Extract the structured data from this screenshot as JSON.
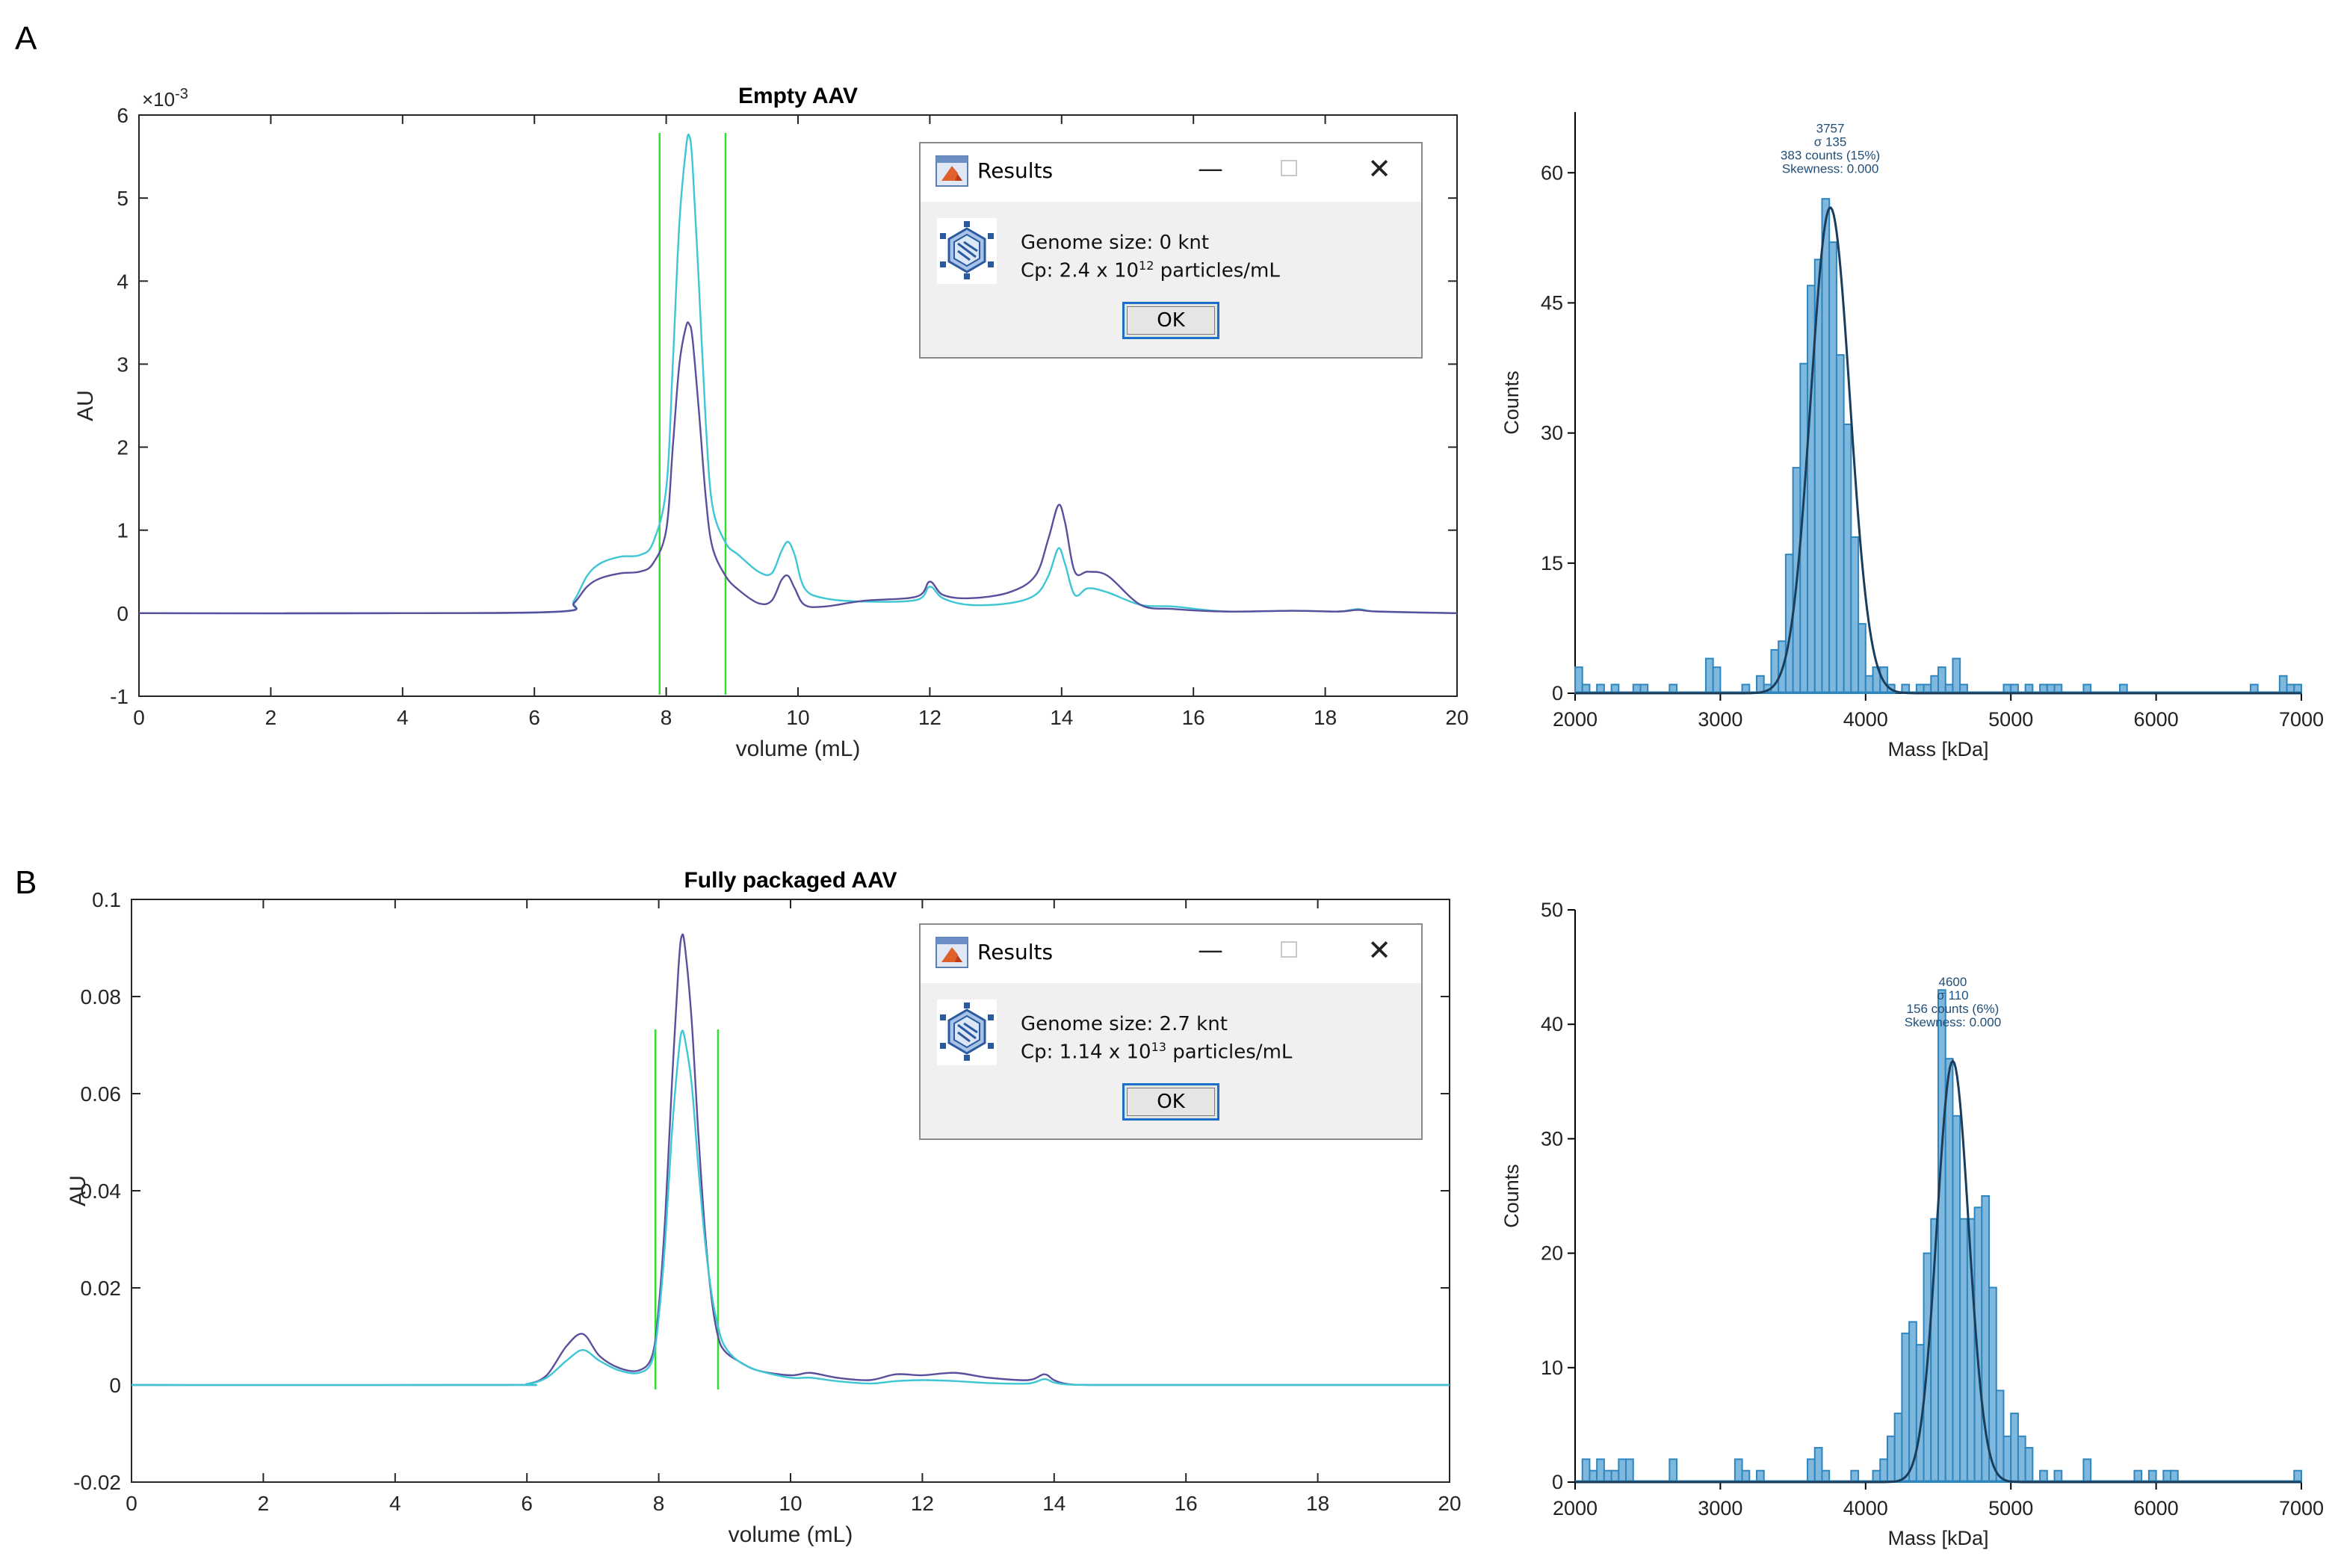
{
  "panel_labels": [
    "A",
    "B"
  ],
  "chart_data": [
    {
      "type": "line",
      "title": "Empty AAV",
      "xlabel": "volume (mL)",
      "ylabel": "AU",
      "y_exponent_label": "×10",
      "y_exponent_power": "-3",
      "xlim": [
        0,
        20
      ],
      "ylim": [
        -1,
        6
      ],
      "xticks": [
        "0",
        "2",
        "4",
        "6",
        "8",
        "10",
        "12",
        "14",
        "16",
        "18",
        "20"
      ],
      "yticks": [
        "-1",
        "0",
        "1",
        "2",
        "3",
        "4",
        "5",
        "6"
      ],
      "markers": [
        7.9,
        8.9
      ],
      "series": [
        {
          "color": "#3ec6d4",
          "x": [
            0,
            4,
            6.4,
            6.6,
            6.8,
            7.0,
            7.3,
            7.6,
            7.8,
            8.0,
            8.1,
            8.2,
            8.3,
            8.35,
            8.4,
            8.5,
            8.6,
            8.7,
            8.9,
            9.1,
            9.4,
            9.6,
            9.75,
            9.85,
            9.95,
            10.1,
            10.4,
            11,
            11.8,
            12.0,
            12.2,
            12.6,
            13.2,
            13.6,
            13.8,
            13.95,
            14.05,
            14.2,
            14.4,
            14.7,
            15.2,
            15.7,
            16.5,
            17.5,
            18.2,
            18.5,
            18.8,
            20
          ],
          "y": [
            0,
            0,
            0.02,
            0.15,
            0.45,
            0.6,
            0.68,
            0.7,
            0.85,
            1.5,
            3.0,
            4.7,
            5.6,
            5.75,
            5.4,
            3.9,
            2.3,
            1.3,
            0.85,
            0.7,
            0.5,
            0.48,
            0.75,
            0.86,
            0.7,
            0.3,
            0.18,
            0.14,
            0.16,
            0.32,
            0.18,
            0.1,
            0.12,
            0.22,
            0.45,
            0.78,
            0.6,
            0.22,
            0.3,
            0.25,
            0.1,
            0.08,
            0.02,
            0.03,
            0.02,
            0.05,
            0.02,
            0
          ]
        },
        {
          "color": "#5a4f9c",
          "x": [
            0,
            4,
            6.4,
            6.6,
            6.8,
            7.0,
            7.3,
            7.6,
            7.8,
            8.0,
            8.1,
            8.2,
            8.3,
            8.35,
            8.4,
            8.5,
            8.6,
            8.7,
            8.9,
            9.1,
            9.4,
            9.6,
            9.75,
            9.85,
            9.95,
            10.1,
            10.4,
            11,
            11.8,
            12.0,
            12.2,
            12.6,
            13.2,
            13.6,
            13.8,
            13.95,
            14.05,
            14.2,
            14.4,
            14.7,
            15.2,
            15.7,
            16.5,
            17.5,
            18.2,
            18.5,
            18.8,
            20
          ],
          "y": [
            0,
            0,
            0.02,
            0.12,
            0.32,
            0.42,
            0.48,
            0.5,
            0.6,
            1.0,
            2.0,
            3.0,
            3.45,
            3.48,
            3.3,
            2.4,
            1.4,
            0.8,
            0.45,
            0.28,
            0.12,
            0.15,
            0.4,
            0.45,
            0.3,
            0.1,
            0.08,
            0.15,
            0.2,
            0.38,
            0.22,
            0.18,
            0.25,
            0.45,
            0.9,
            1.3,
            1.1,
            0.5,
            0.5,
            0.45,
            0.1,
            0.05,
            0.02,
            0.03,
            0.02,
            0.04,
            0.02,
            0
          ]
        }
      ]
    },
    {
      "type": "bar",
      "xlabel": "Mass [kDa]",
      "ylabel": "Counts",
      "xlim": [
        2000,
        7000
      ],
      "ylim": [
        0,
        67
      ],
      "xticks": [
        "2000",
        "3000",
        "4000",
        "5000",
        "6000",
        "7000"
      ],
      "yticks": [
        "0",
        "15",
        "30",
        "45",
        "60"
      ],
      "bin_width": 50,
      "bins_start": [
        2000,
        2050,
        2150,
        2250,
        2400,
        2450,
        2650,
        2900,
        2950,
        3150,
        3250,
        3300,
        3350,
        3400,
        3450,
        3500,
        3550,
        3600,
        3650,
        3700,
        3750,
        3800,
        3850,
        3900,
        3950,
        4000,
        4050,
        4100,
        4150,
        4250,
        4350,
        4400,
        4450,
        4500,
        4550,
        4600,
        4650,
        4950,
        5000,
        5100,
        5200,
        5250,
        5300,
        5500,
        5750,
        6650,
        6850,
        6900,
        6950
      ],
      "counts": [
        3,
        1,
        1,
        1,
        1,
        1,
        1,
        4,
        3,
        1,
        2,
        1,
        5,
        6,
        16,
        26,
        38,
        47,
        50,
        57,
        52,
        39,
        31,
        18,
        8,
        2,
        3,
        3,
        1,
        1,
        1,
        1,
        2,
        3,
        1,
        4,
        1,
        1,
        1,
        1,
        1,
        1,
        1,
        1,
        1,
        1,
        2,
        1,
        1
      ],
      "fit": {
        "mean": 3757,
        "sigma": 135,
        "peak": 56
      },
      "annotation": [
        "3757",
        "σ 135",
        "383 counts (15%)",
        "Skewness: 0.000"
      ]
    },
    {
      "type": "line",
      "title": "Fully packaged AAV",
      "xlabel": "volume (mL)",
      "ylabel": "AU",
      "xlim": [
        0,
        20
      ],
      "ylim": [
        -0.02,
        0.1
      ],
      "xticks": [
        "0",
        "2",
        "4",
        "6",
        "8",
        "10",
        "12",
        "14",
        "16",
        "18",
        "20"
      ],
      "yticks": [
        "-0.02",
        "0",
        "0.02",
        "0.04",
        "0.06",
        "0.08",
        "0.1"
      ],
      "markers": [
        7.95,
        8.9
      ],
      "series": [
        {
          "color": "#5a4f9c",
          "x": [
            0,
            5.6,
            6.0,
            6.3,
            6.6,
            6.85,
            7.1,
            7.4,
            7.7,
            7.9,
            8.0,
            8.1,
            8.2,
            8.3,
            8.35,
            8.4,
            8.5,
            8.6,
            8.7,
            8.8,
            8.9,
            9.0,
            9.2,
            9.5,
            10.0,
            10.3,
            10.7,
            11.2,
            11.6,
            12.0,
            12.5,
            13.0,
            13.6,
            13.85,
            14.0,
            14.2,
            14.6,
            16,
            18,
            20
          ],
          "y": [
            0,
            0,
            0.0002,
            0.002,
            0.008,
            0.0105,
            0.006,
            0.0035,
            0.003,
            0.006,
            0.016,
            0.035,
            0.062,
            0.086,
            0.0925,
            0.09,
            0.075,
            0.052,
            0.032,
            0.018,
            0.01,
            0.007,
            0.005,
            0.003,
            0.002,
            0.0025,
            0.0015,
            0.001,
            0.0022,
            0.002,
            0.0025,
            0.0015,
            0.001,
            0.0022,
            0.001,
            0.0002,
            0,
            0,
            0,
            0
          ]
        },
        {
          "color": "#3ec6d4",
          "x": [
            0,
            5.6,
            6.0,
            6.3,
            6.6,
            6.85,
            7.1,
            7.4,
            7.7,
            7.9,
            8.0,
            8.1,
            8.2,
            8.3,
            8.35,
            8.4,
            8.5,
            8.6,
            8.7,
            8.8,
            8.9,
            9.0,
            9.2,
            9.5,
            10.0,
            10.3,
            10.7,
            11.2,
            11.6,
            12.0,
            12.5,
            13.0,
            13.6,
            13.85,
            14.0,
            14.2,
            14.6,
            16,
            18,
            20
          ],
          "y": [
            0,
            0,
            0.0002,
            0.0015,
            0.005,
            0.0072,
            0.005,
            0.003,
            0.0025,
            0.005,
            0.014,
            0.03,
            0.052,
            0.068,
            0.0728,
            0.071,
            0.062,
            0.045,
            0.03,
            0.019,
            0.012,
            0.008,
            0.005,
            0.003,
            0.0015,
            0.0015,
            0.0008,
            0.0003,
            0.0008,
            0.001,
            0.0008,
            0.0004,
            0.0003,
            0.0012,
            0.0005,
            0.0001,
            0,
            0,
            0,
            0
          ]
        }
      ]
    },
    {
      "type": "bar",
      "xlabel": "Mass [kDa]",
      "ylabel": "Counts",
      "xlim": [
        2000,
        7000
      ],
      "ylim": [
        0,
        50
      ],
      "xticks": [
        "2000",
        "3000",
        "4000",
        "5000",
        "6000",
        "7000"
      ],
      "yticks": [
        "0",
        "10",
        "20",
        "30",
        "40",
        "50"
      ],
      "bin_width": 50,
      "bins_start": [
        2050,
        2100,
        2150,
        2200,
        2250,
        2300,
        2350,
        2650,
        3100,
        3150,
        3250,
        3600,
        3650,
        3700,
        3900,
        4050,
        4100,
        4150,
        4200,
        4250,
        4300,
        4350,
        4400,
        4450,
        4500,
        4550,
        4600,
        4650,
        4700,
        4750,
        4800,
        4850,
        4900,
        4950,
        5000,
        5050,
        5100,
        5200,
        5300,
        5500,
        5850,
        5950,
        6050,
        6100,
        6950
      ],
      "counts": [
        2,
        1,
        2,
        1,
        1,
        2,
        2,
        2,
        2,
        1,
        1,
        2,
        3,
        1,
        1,
        1,
        2,
        4,
        6,
        13,
        14,
        12,
        20,
        23,
        43,
        37,
        32,
        23,
        23,
        24,
        25,
        17,
        8,
        4,
        6,
        4,
        3,
        1,
        1,
        2,
        1,
        1,
        1,
        1,
        1
      ],
      "fit": {
        "mean": 4600,
        "sigma": 110,
        "peak": 36.8
      },
      "annotation": [
        "4600",
        "σ 110",
        "156 counts (6%)",
        "Skewness: 0.000"
      ]
    }
  ],
  "dialogs": [
    {
      "title": "Results",
      "genome": "Genome size:  0 knt",
      "cp_prefix": "Cp:  2.4 x 10",
      "cp_exp": "12",
      "cp_suffix": " particles/mL",
      "ok": "OK"
    },
    {
      "title": "Results",
      "genome": "Genome size:  2.7 knt",
      "cp_prefix": "Cp:  1.14 x 10",
      "cp_exp": "13",
      "cp_suffix": " particles/mL",
      "ok": "OK"
    }
  ],
  "colors": {
    "accent_green": "#33dd33",
    "hist_fill": "#7fb8dc",
    "hist_edge": "#2e86c1",
    "fit_line": "#1a3d5c"
  }
}
